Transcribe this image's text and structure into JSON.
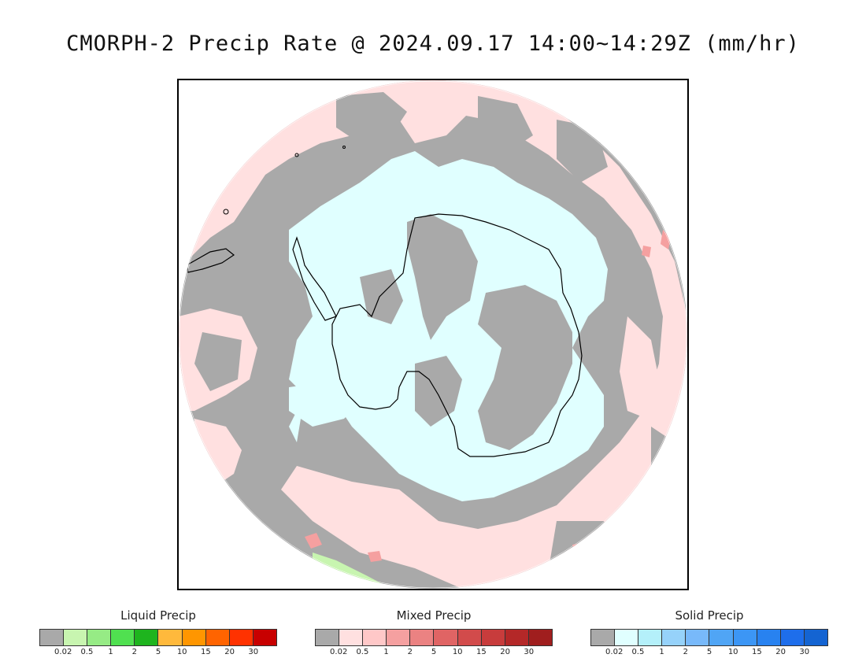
{
  "title": "CMORPH-2 Precip Rate @ 2024.09.17 14:00~14:29Z (mm/hr)",
  "map": {
    "projection": "south polar stereographic",
    "region": "Antarctica and Southern Ocean",
    "colors": {
      "no_precip": "#a9a9a9",
      "mixed_light": "#ffe0e0",
      "solid_light": "#e0ffff",
      "mixed_moderate": "#f5a0a0",
      "liquid_light": "#c8f5b0",
      "coastline": "#000000"
    }
  },
  "legends": [
    {
      "title": "Liquid Precip",
      "colors": [
        "#a9a9a9",
        "#c8f5b0",
        "#96eb85",
        "#50e050",
        "#1eb41e",
        "#ffb93c",
        "#ff9600",
        "#ff6400",
        "#ff3200",
        "#c80000"
      ],
      "ticks": [
        "0.02",
        "0.5",
        "1",
        "2",
        "5",
        "10",
        "15",
        "20",
        "30"
      ]
    },
    {
      "title": "Mixed Precip",
      "colors": [
        "#a9a9a9",
        "#ffe0e0",
        "#ffc8c8",
        "#f5a0a0",
        "#eb8282",
        "#e06464",
        "#d24b4b",
        "#c83c3c",
        "#b42828",
        "#a01e1e"
      ],
      "ticks": [
        "0.02",
        "0.5",
        "1",
        "2",
        "5",
        "10",
        "15",
        "20",
        "30"
      ]
    },
    {
      "title": "Solid Precip",
      "colors": [
        "#a9a9a9",
        "#e0ffff",
        "#b4f0fa",
        "#96d2fa",
        "#78b9fa",
        "#50a5f5",
        "#3c96f5",
        "#2882f0",
        "#1e6eeb",
        "#1464d2"
      ],
      "ticks": [
        "0.02",
        "0.5",
        "1",
        "2",
        "5",
        "10",
        "15",
        "20",
        "30"
      ]
    }
  ]
}
